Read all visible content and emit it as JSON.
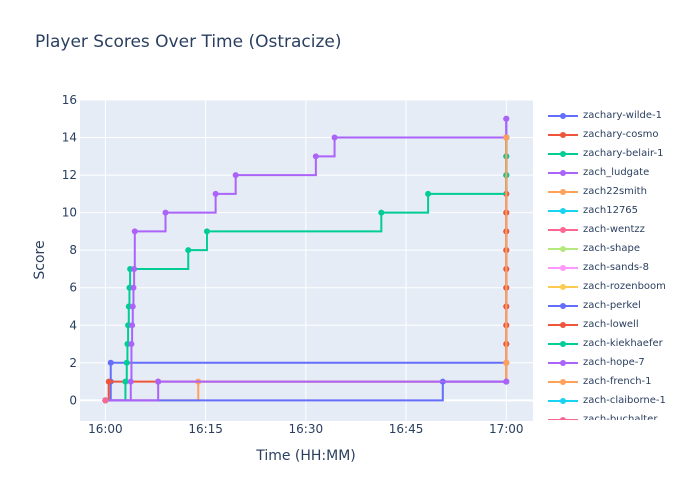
{
  "chart_data": {
    "type": "line",
    "line_shape": "step",
    "title": "Player Scores Over Time (Ostracize)",
    "xlabel": "Time (HH:MM)",
    "ylabel": "Score",
    "x_ticks": [
      "16:00",
      "16:15",
      "16:30",
      "16:45",
      "17:00"
    ],
    "x_tick_minutes": [
      0,
      15,
      30,
      45,
      60
    ],
    "xlim": [
      -3.8,
      64
    ],
    "ylim": [
      -1.1,
      16
    ],
    "y_ticks": [
      0,
      2,
      4,
      6,
      8,
      10,
      12,
      14,
      16
    ],
    "grid": true,
    "legend_position": "right",
    "plot_background": "#e5ecf6",
    "series": [
      {
        "name": "zachary-wilde-1",
        "color": "#636efa",
        "x": [
          0.0,
          0.8,
          0.8,
          60.0,
          60.0,
          60.0,
          60.0,
          60.0,
          60.0,
          60.0,
          60.0,
          60.0,
          60.0,
          60.0,
          60.0,
          60.0,
          60.0
        ],
        "y": [
          0,
          1,
          2,
          2,
          3,
          4,
          5,
          6,
          7,
          8,
          9,
          10,
          11,
          12,
          13,
          14,
          15
        ]
      },
      {
        "name": "zachary-cosmo",
        "color": "#ef553b",
        "x": [
          0.0,
          0.5,
          7.9,
          60.0,
          60.0,
          60.0,
          60.0,
          60.0,
          60.0,
          60.0,
          60.0,
          60.0,
          60.0,
          60.0,
          60.0,
          60.0,
          60.0
        ],
        "y": [
          0,
          1,
          1,
          1,
          2,
          3,
          4,
          5,
          6,
          7,
          8,
          9,
          10,
          11,
          12,
          13,
          14
        ]
      },
      {
        "name": "zachary-belair-1",
        "color": "#00cc96",
        "x": [
          0.0,
          3.0,
          3.2,
          3.3,
          3.4,
          3.5,
          3.6,
          3.7,
          12.4,
          15.2,
          41.3,
          48.3,
          60.0,
          60.0,
          60.0
        ],
        "y": [
          0,
          1,
          2,
          3,
          4,
          5,
          6,
          7,
          8,
          9,
          10,
          11,
          12,
          13,
          14
        ]
      },
      {
        "name": "zach_ludgate",
        "color": "#ab63fa",
        "x": [
          0.0,
          3.8,
          3.9,
          4.0,
          4.1,
          4.2,
          4.3,
          4.4,
          9.0,
          16.5,
          19.5,
          31.5,
          34.3,
          60.0,
          60.0
        ],
        "y": [
          0,
          1,
          3,
          4,
          5,
          6,
          7,
          9,
          10,
          11,
          12,
          13,
          14,
          14,
          15
        ]
      },
      {
        "name": "zach22smith",
        "color": "#ffa15a",
        "x": [
          0.0,
          13.9,
          60.0,
          60.0,
          60.0
        ],
        "y": [
          0,
          1,
          1,
          2,
          14
        ]
      },
      {
        "name": "zach12765",
        "color": "#19d3f3",
        "x": [
          0.0
        ],
        "y": [
          0
        ]
      },
      {
        "name": "zach-wentzz",
        "color": "#ff6692",
        "x": [
          0.0
        ],
        "y": [
          0
        ]
      },
      {
        "name": "zach-shape",
        "color": "#b6e880",
        "x": [
          0.0
        ],
        "y": [
          0
        ]
      },
      {
        "name": "zach-sands-8",
        "color": "#ff97ff",
        "x": [
          0.0
        ],
        "y": [
          0
        ]
      },
      {
        "name": "zach-rozenboom",
        "color": "#fecb52",
        "x": [
          0.0
        ],
        "y": [
          0
        ]
      },
      {
        "name": "zach-perkel",
        "color": "#636efa",
        "x": [
          0.0,
          50.5,
          60.0
        ],
        "y": [
          0,
          1,
          1
        ]
      },
      {
        "name": "zach-lowell",
        "color": "#ef553b",
        "x": [
          0.0
        ],
        "y": [
          0
        ]
      },
      {
        "name": "zach-kiekhaefer",
        "color": "#00cc96",
        "x": [
          0.0
        ],
        "y": [
          0
        ]
      },
      {
        "name": "zach-hope-7",
        "color": "#ab63fa",
        "x": [
          0.0,
          7.9,
          60.0
        ],
        "y": [
          0,
          1,
          1
        ]
      },
      {
        "name": "zach-french-1",
        "color": "#ffa15a",
        "x": [
          0.0
        ],
        "y": [
          0
        ]
      },
      {
        "name": "zach-claiborne-1",
        "color": "#19d3f3",
        "x": [
          0.0
        ],
        "y": [
          0
        ]
      },
      {
        "name": "zach-buchalter",
        "color": "#ff6692",
        "x": [
          0.0
        ],
        "y": [
          0
        ]
      }
    ]
  }
}
